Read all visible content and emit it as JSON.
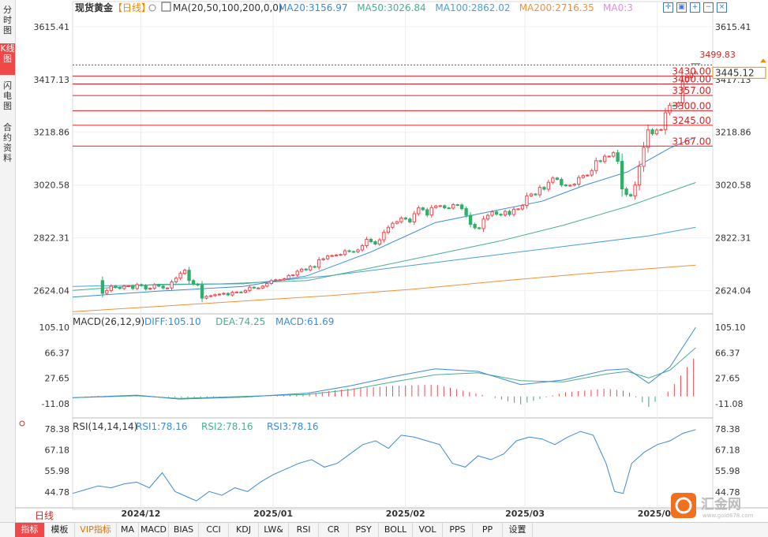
{
  "side_buttons": [
    "分时图",
    "K线图",
    "闪电图",
    "合约资料"
  ],
  "header": {
    "instrument": "现货黄金",
    "period": "【日线】",
    "ma_label": "MA(20,50,100,200,0,0)",
    "ma_values": [
      {
        "text": "MA20:3156.97",
        "color": "#3c8ad8"
      },
      {
        "text": "MA50:3026.84",
        "color": "#48b08a"
      },
      {
        "text": "MA100:2862.02",
        "color": "#4aa0d8"
      },
      {
        "text": "MA200:2716.35",
        "color": "#f0903a"
      },
      {
        "text": "MA0:3",
        "color": "#e090d8"
      }
    ]
  },
  "price_axis": {
    "ticks": [
      "3615.41",
      "3417.13",
      "3218.86",
      "3020.58",
      "2822.31",
      "2624.04"
    ]
  },
  "last_price": "3445.12",
  "high_marker": "3499.83",
  "levels": [
    "3430.00",
    "3400.00",
    "3357.00",
    "3300.00",
    "3245.00",
    "3167.00"
  ],
  "macd": {
    "label": "MACD(26,12,9)",
    "values": [
      {
        "text": "DIFF:105.10",
        "color": "#3c8ad8"
      },
      {
        "text": "DEA:74.25",
        "color": "#48b08a"
      },
      {
        "text": "MACD:61.69",
        "color": "#3c8ad8"
      }
    ],
    "ticks": [
      "105.10",
      "66.37",
      "27.65",
      "-11.08"
    ]
  },
  "rsi": {
    "label": "RSI(14,14,14)",
    "values": [
      {
        "text": "RSI1:78.16",
        "color": "#3c8ad8"
      },
      {
        "text": "RSI2:78.16",
        "color": "#48b08a"
      },
      {
        "text": "RSI3:78.16",
        "color": "#3c8ad8"
      }
    ],
    "ticks": [
      "78.38",
      "67.18",
      "55.98",
      "44.78"
    ]
  },
  "date_labels": [
    "2024/12",
    "2025/01",
    "2025/02",
    "2025/03",
    "2025/04"
  ],
  "period_button": "日线",
  "bottom_tabs": [
    "指标",
    "模板",
    "VIP指标",
    "MA",
    "MACD",
    "BIAS",
    "CCI",
    "KDJ",
    "LW&",
    "RSI",
    "CR",
    "PSY",
    "BOLL",
    "VOL",
    "PPS",
    "PP",
    "设置"
  ],
  "logo_text": "汇金网",
  "logo_sub": "www.gold678.com",
  "colors": {
    "up": "#f04850",
    "down": "#2fb06a",
    "level": "#e02020",
    "grid": "#d9d9d9",
    "accent": "#f08a00"
  },
  "chart_data": {
    "type": "candlestick",
    "title": "现货黄金【日线】",
    "y_range": [
      2540,
      3680
    ],
    "x_range_days": [
      0,
      150
    ],
    "date_tick_days": {
      "2024/12": 16,
      "2025/01": 47,
      "2025/02": 78,
      "2025/03": 106,
      "2025/04": 137
    },
    "first_day": 0,
    "last_day": 146,
    "closes": [
      2662,
      2614,
      2625,
      2641,
      2636,
      2632,
      2641,
      2642,
      2632,
      2647,
      2643,
      2630,
      2633,
      2646,
      2641,
      2634,
      2634,
      2657,
      2671,
      2689,
      2701,
      2662,
      2649,
      2645,
      2596,
      2603,
      2605,
      2609,
      2611,
      2614,
      2608,
      2618,
      2619,
      2618,
      2625,
      2637,
      2634,
      2634,
      2641,
      2651,
      2662,
      2665,
      2665,
      2669,
      2681,
      2683,
      2697,
      2705,
      2702,
      2715,
      2712,
      2740,
      2744,
      2754,
      2756,
      2758,
      2760,
      2774,
      2771,
      2770,
      2777,
      2793,
      2817,
      2808,
      2799,
      2815,
      2843,
      2862,
      2877,
      2883,
      2897,
      2893,
      2882,
      2913,
      2935,
      2928,
      2908,
      2936,
      2942,
      2943,
      2935,
      2934,
      2947,
      2946,
      2932,
      2907,
      2873,
      2860,
      2857,
      2893,
      2907,
      2920,
      2911,
      2908,
      2922,
      2910,
      2930,
      2931,
      2944,
      2980,
      2987,
      2984,
      3012,
      3005,
      3031,
      3047,
      3042,
      3021,
      3018,
      3020,
      3024,
      3049,
      3056,
      3058,
      3075,
      3112,
      3109,
      3129,
      3129,
      3142,
      3110,
      3006,
      2985,
      2980,
      3021,
      3091,
      3162,
      3228,
      3213,
      3227,
      3229,
      3292,
      3320,
      3318,
      3329,
      3410,
      3424,
      3440,
      3445
    ],
    "first_candle_day": 7,
    "ma20": [
      [
        0,
        2600
      ],
      [
        20,
        2622
      ],
      [
        40,
        2640
      ],
      [
        55,
        2680
      ],
      [
        70,
        2770
      ],
      [
        85,
        2880
      ],
      [
        100,
        2928
      ],
      [
        110,
        2960
      ],
      [
        120,
        3020
      ],
      [
        130,
        3070
      ],
      [
        140,
        3160
      ],
      [
        146,
        3200
      ]
    ],
    "ma50": [
      [
        0,
        2625
      ],
      [
        20,
        2648
      ],
      [
        35,
        2650
      ],
      [
        55,
        2662
      ],
      [
        70,
        2710
      ],
      [
        85,
        2760
      ],
      [
        100,
        2810
      ],
      [
        115,
        2870
      ],
      [
        130,
        2940
      ],
      [
        146,
        3030
      ]
    ],
    "ma100": [
      [
        0,
        2640
      ],
      [
        20,
        2646
      ],
      [
        40,
        2650
      ],
      [
        60,
        2680
      ],
      [
        80,
        2720
      ],
      [
        100,
        2760
      ],
      [
        120,
        2800
      ],
      [
        135,
        2830
      ],
      [
        146,
        2862
      ]
    ],
    "ma200": [
      [
        0,
        2545
      ],
      [
        20,
        2565
      ],
      [
        40,
        2585
      ],
      [
        60,
        2605
      ],
      [
        80,
        2630
      ],
      [
        100,
        2660
      ],
      [
        120,
        2688
      ],
      [
        146,
        2720
      ]
    ],
    "macd_range": [
      -11.08,
      105.1
    ],
    "diff": [
      [
        0,
        -2
      ],
      [
        15,
        2
      ],
      [
        25,
        -4
      ],
      [
        40,
        -1
      ],
      [
        55,
        5
      ],
      [
        65,
        16
      ],
      [
        75,
        30
      ],
      [
        85,
        42
      ],
      [
        95,
        38
      ],
      [
        105,
        18
      ],
      [
        115,
        25
      ],
      [
        125,
        40
      ],
      [
        130,
        42
      ],
      [
        135,
        20
      ],
      [
        140,
        45
      ],
      [
        146,
        105
      ]
    ],
    "dea": [
      [
        0,
        -2
      ],
      [
        15,
        1
      ],
      [
        25,
        -3
      ],
      [
        40,
        0
      ],
      [
        55,
        3
      ],
      [
        65,
        10
      ],
      [
        75,
        22
      ],
      [
        85,
        33
      ],
      [
        95,
        36
      ],
      [
        105,
        24
      ],
      [
        115,
        22
      ],
      [
        125,
        34
      ],
      [
        130,
        38
      ],
      [
        135,
        28
      ],
      [
        140,
        40
      ],
      [
        146,
        74
      ]
    ],
    "rsi_range": [
      38,
      80
    ],
    "rsi": [
      [
        0,
        44
      ],
      [
        3,
        46
      ],
      [
        6,
        48
      ],
      [
        9,
        47
      ],
      [
        12,
        49
      ],
      [
        15,
        50
      ],
      [
        18,
        47
      ],
      [
        21,
        55
      ],
      [
        24,
        45
      ],
      [
        27,
        42
      ],
      [
        29,
        40
      ],
      [
        32,
        45
      ],
      [
        35,
        43
      ],
      [
        38,
        47
      ],
      [
        41,
        45
      ],
      [
        44,
        50
      ],
      [
        47,
        54
      ],
      [
        50,
        57
      ],
      [
        53,
        60
      ],
      [
        56,
        62
      ],
      [
        59,
        58
      ],
      [
        62,
        60
      ],
      [
        65,
        65
      ],
      [
        68,
        70
      ],
      [
        71,
        72
      ],
      [
        74,
        68
      ],
      [
        77,
        75
      ],
      [
        80,
        74
      ],
      [
        83,
        72
      ],
      [
        86,
        70
      ],
      [
        89,
        60
      ],
      [
        92,
        58
      ],
      [
        95,
        64
      ],
      [
        98,
        62
      ],
      [
        101,
        65
      ],
      [
        104,
        72
      ],
      [
        107,
        74
      ],
      [
        110,
        73
      ],
      [
        113,
        70
      ],
      [
        116,
        74
      ],
      [
        119,
        77
      ],
      [
        122,
        75
      ],
      [
        125,
        60
      ],
      [
        127,
        45
      ],
      [
        129,
        44
      ],
      [
        131,
        60
      ],
      [
        134,
        66
      ],
      [
        137,
        70
      ],
      [
        140,
        72
      ],
      [
        143,
        76
      ],
      [
        146,
        78
      ]
    ]
  }
}
